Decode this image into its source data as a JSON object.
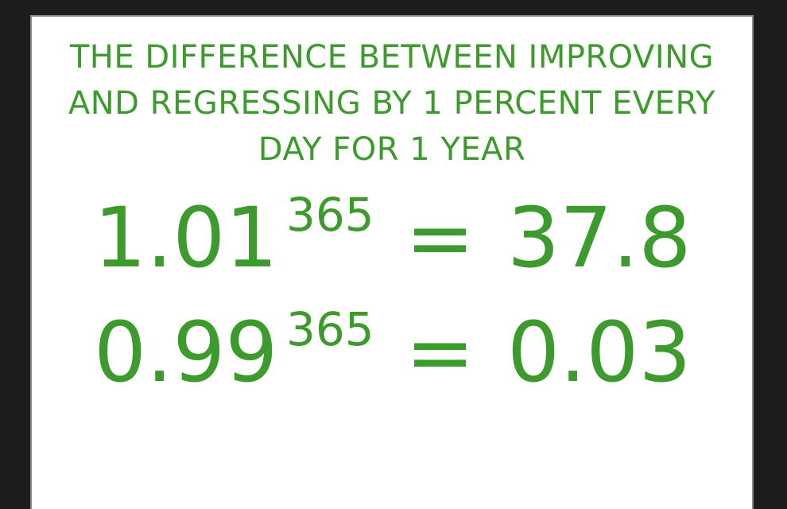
{
  "headline": {
    "line1": "THE DIFFERENCE BETWEEN IMPROVING",
    "line2": "AND REGRESSING BY 1 PERCENT EVERY",
    "line3": "DAY FOR 1 YEAR"
  },
  "equations": [
    {
      "base": "1.01",
      "exponent": "365",
      "equals": "=",
      "result": "37.8"
    },
    {
      "base": "0.99",
      "exponent": "365",
      "equals": "=",
      "result": "0.03"
    }
  ],
  "colors": {
    "text": "#3d9a2c",
    "background": "#ffffff",
    "frame": "#1d1d1d"
  }
}
